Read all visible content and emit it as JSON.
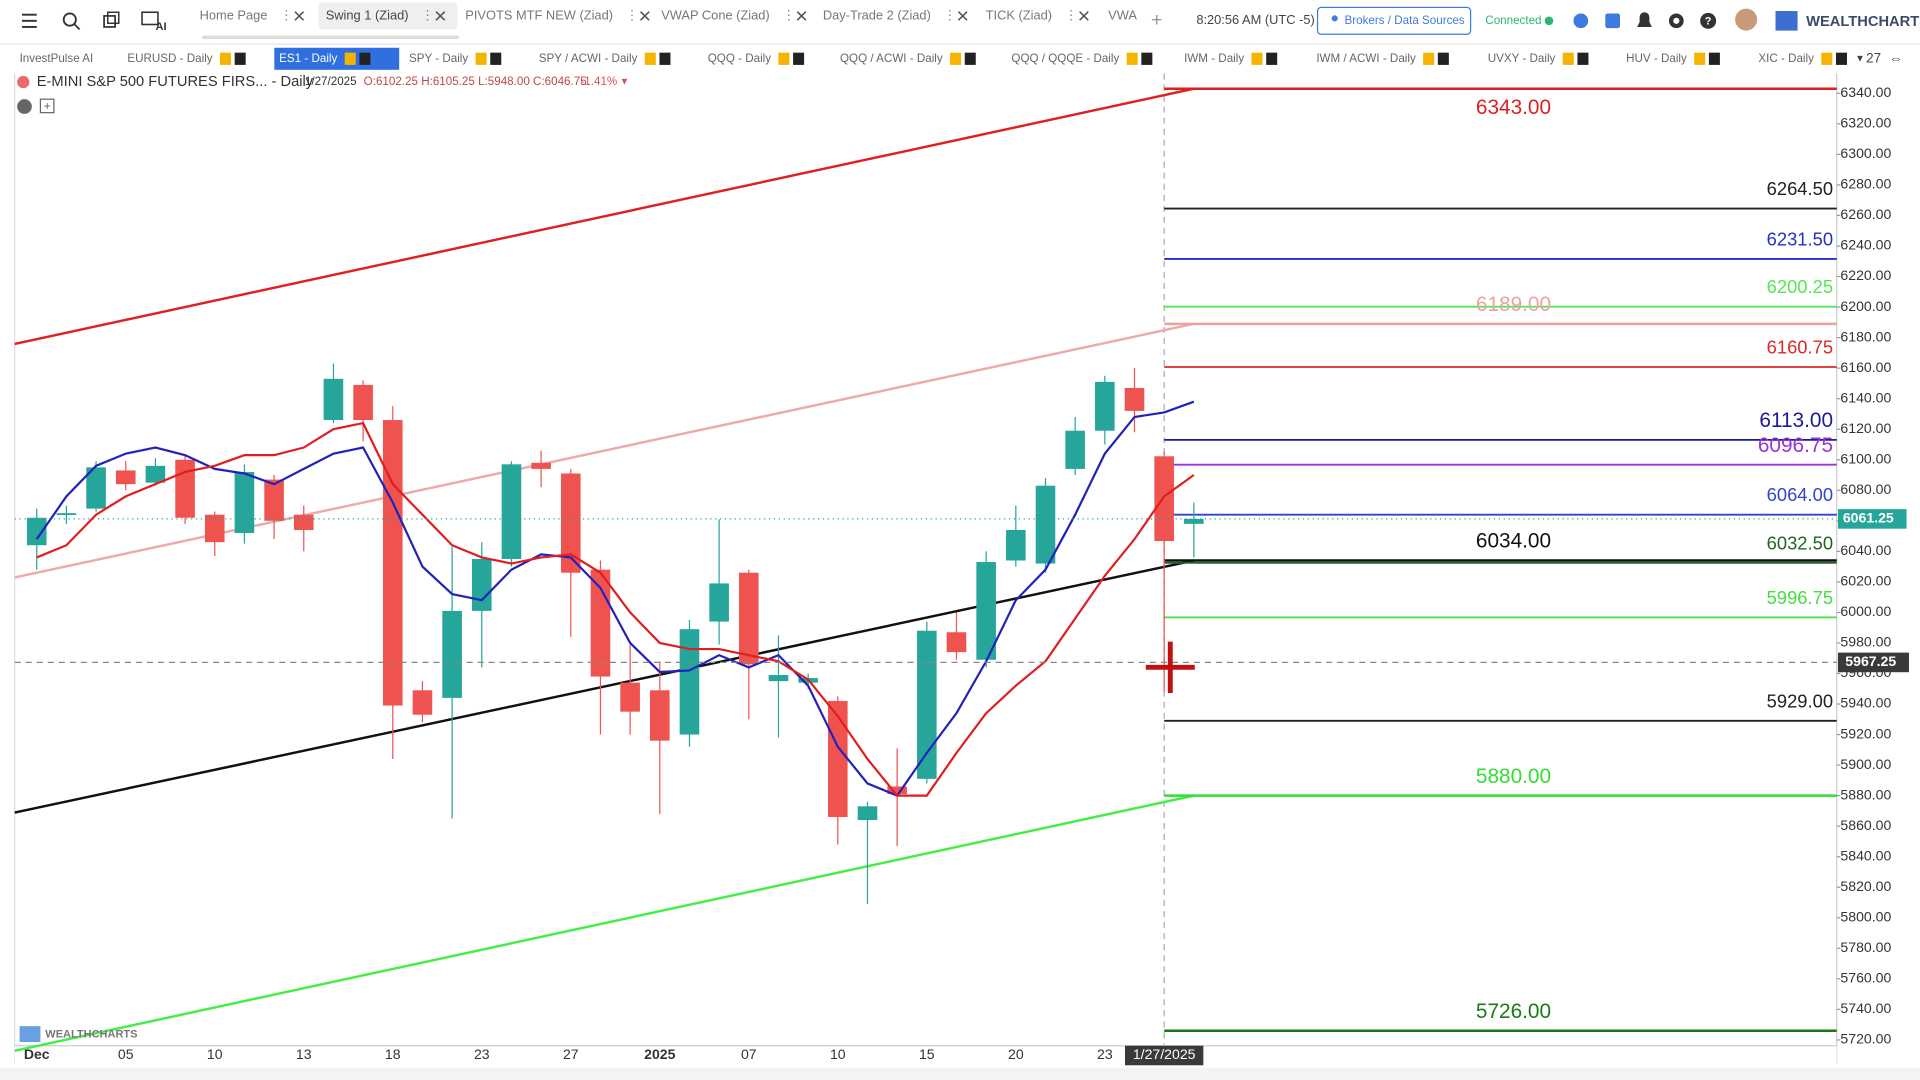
{
  "toolbar": {
    "tabs": [
      "Home Page",
      "Swing 1 (Ziad)",
      "PIVOTS MTF NEW (Ziad)",
      "VWAP Cone (Ziad)",
      "Day-Trade 2 (Ziad)",
      "TICK (Ziad)",
      "VWA"
    ],
    "active_tab": 1,
    "time": "8:20:56 AM (UTC -5)",
    "brokers_button": "Brokers / Data Sources",
    "status": "Connected",
    "brand": "WEALTHCHARTS"
  },
  "watchlist": {
    "tabs": [
      "InvestPulse AI",
      "EURUSD - Daily",
      "ES1 - Daily",
      "SPY - Daily",
      "SPY / ACWI - Daily",
      "QQQ - Daily",
      "QQQ / ACWI - Daily",
      "QQQ / QQQE - Daily",
      "IWM - Daily",
      "IWM / ACWI - Daily",
      "UVXY - Daily",
      "HUV - Daily",
      "XIC - Daily"
    ],
    "active_tab": 2,
    "count": "27"
  },
  "chart_header": {
    "symbol": "E-MINI S&P 500 FUTURES FIRS... - Daily",
    "date": "1/27/2025",
    "ohlc": "O:6102.25 H:6105.25 L:5948.00 C:6046.75",
    "change": "-1.41%"
  },
  "chart_data": {
    "type": "candlestick",
    "categories": [
      "Dec",
      null,
      null,
      "05",
      null,
      null,
      "10",
      null,
      null,
      "13",
      null,
      null,
      "18",
      null,
      null,
      "23",
      null,
      null,
      "27",
      null,
      null,
      "2025",
      null,
      null,
      "07",
      null,
      null,
      "10",
      null,
      null,
      "15",
      null,
      null,
      "20",
      null,
      null,
      "23",
      null,
      null,
      null
    ],
    "open": [
      6044,
      6064,
      6068,
      6093,
      6085,
      6100,
      6064,
      6052,
      6087,
      6064,
      6126,
      6149,
      6126,
      5949,
      5944,
      6001,
      6035,
      6098,
      6091,
      6028,
      5954,
      5949,
      5920,
      5994,
      6026,
      5955,
      5954,
      5942,
      5864,
      5886,
      5891,
      5987,
      5969,
      6034,
      6032,
      6094,
      6119,
      6147,
      6102.25,
      6058
    ],
    "high": [
      6068,
      6070,
      6099,
      6099,
      6101,
      6103,
      6066,
      6097,
      6090,
      6070,
      6163,
      6152,
      6135,
      5955,
      6043,
      6046,
      6099,
      6106,
      6094,
      6034,
      5979,
      5968,
      5995,
      6061,
      6028,
      5985,
      5960,
      5945,
      5876,
      5911,
      5994,
      6000,
      6040,
      6070,
      6088,
      6128,
      6155,
      6160,
      6105.25,
      6072
    ],
    "low": [
      6028,
      6058,
      6066,
      6080,
      6083,
      6058,
      6037,
      6045,
      6048,
      6040,
      6124,
      6112,
      5904,
      5928,
      5865,
      5964,
      6030,
      6082,
      5984,
      5920,
      5920,
      5868,
      5912,
      5979,
      5930,
      5918,
      5950,
      5848,
      5809,
      5847,
      5888,
      5969,
      5964,
      6030,
      6026,
      6090,
      6110,
      6118,
      5948,
      6036
    ],
    "close": [
      6062,
      6065,
      6095,
      6084,
      6096,
      6062,
      6046,
      6092,
      6060,
      6054,
      6153,
      6126,
      5939,
      5933,
      6001,
      6035,
      6097,
      6094,
      6026,
      5958,
      5935,
      5916,
      5989,
      6019,
      5966,
      5959,
      5957,
      5866,
      5873,
      5881,
      5988,
      5974,
      6033,
      6054,
      6083,
      6119,
      6151,
      6132,
      6046.75,
      6061.25
    ],
    "up_color": "#26a69a",
    "down_color": "#ef5350",
    "series": [
      {
        "color": "#2222bb",
        "values": [
          6048,
          6076,
          6096,
          6104,
          6108,
          6103,
          6094,
          6091,
          6084,
          6094,
          6104,
          6108,
          6072,
          6030,
          6012,
          6008,
          6028,
          6038,
          6036,
          6016,
          5980,
          5961,
          5962,
          5972,
          5964,
          5972,
          5952,
          5912,
          5888,
          5880,
          5908,
          5934,
          5968,
          6008,
          6028,
          6064,
          6104,
          6128,
          6131,
          6138
        ]
      },
      {
        "color": "#e01e1e",
        "values": [
          6036,
          6044,
          6064,
          6076,
          6084,
          6092,
          6096,
          6103,
          6103,
          6108,
          6120,
          6124,
          6084,
          6064,
          6044,
          6036,
          6032,
          6036,
          6038,
          6026,
          6000,
          5980,
          5976,
          5976,
          5972,
          5968,
          5956,
          5932,
          5904,
          5880,
          5880,
          5908,
          5934,
          5952,
          5968,
          5996,
          6024,
          6048,
          6076,
          6090
        ]
      }
    ],
    "trendlines": [
      {
        "color": "#e02020",
        "values": [
          6179,
          6343
        ]
      },
      {
        "color": "#eeaaaa",
        "values": [
          6026,
          6189
        ]
      },
      {
        "color": "#111111",
        "values": [
          5872,
          6034
        ]
      },
      {
        "color": "#44ee44",
        "values": [
          5716,
          5880
        ]
      }
    ],
    "levels": [
      {
        "value": 6343,
        "label": "6343.00",
        "color": "#dd1f1f",
        "align": "center"
      },
      {
        "value": 6264.5,
        "label": "6264.50",
        "color": "#222222",
        "align": "right"
      },
      {
        "value": 6231.5,
        "label": "6231.50",
        "color": "#2b2bd0",
        "align": "right"
      },
      {
        "value": 6200.25,
        "label": "6200.25",
        "color": "#55e855",
        "align": "right"
      },
      {
        "value": 6189,
        "label": "6189.00",
        "color": "#eea0a8",
        "align": "center"
      },
      {
        "value": 6160.75,
        "label": "6160.75",
        "color": "#dd2828",
        "align": "right"
      },
      {
        "value": 6113,
        "label": "6113.00",
        "color": "#1a1a9a",
        "align": "right"
      },
      {
        "value": 6096.75,
        "label": "6096.75",
        "color": "#9933dd",
        "align": "right"
      },
      {
        "value": 6064,
        "label": "6064.00",
        "color": "#3344cc",
        "align": "right"
      },
      {
        "value": 6034,
        "label": "6034.00",
        "color": "#111111",
        "align": "center"
      },
      {
        "value": 6032.5,
        "label": "6032.50",
        "color": "#226622",
        "align": "right"
      },
      {
        "value": 5996.75,
        "label": "5996.75",
        "color": "#44dd44",
        "align": "right"
      },
      {
        "value": 5929,
        "label": "5929.00",
        "color": "#222222",
        "align": "right"
      },
      {
        "value": 5880,
        "label": "5880.00",
        "color": "#33dd33",
        "align": "center"
      },
      {
        "value": 5726,
        "label": "5726.00",
        "color": "#1a7a1a",
        "align": "center"
      }
    ],
    "ylim": [
      5717,
      6353
    ],
    "yticks": [
      {
        "value": 5720,
        "label": "5720.00"
      },
      {
        "value": 5740,
        "label": "5740.00"
      },
      {
        "value": 5760,
        "label": "5760.00"
      },
      {
        "value": 5780,
        "label": "5780.00"
      },
      {
        "value": 5800,
        "label": "5800.00"
      },
      {
        "value": 5820,
        "label": "5820.00"
      },
      {
        "value": 5840,
        "label": "5840.00"
      },
      {
        "value": 5860,
        "label": "5860.00"
      },
      {
        "value": 5880,
        "label": "5880.00"
      },
      {
        "value": 5900,
        "label": "5900.00"
      },
      {
        "value": 5920,
        "label": "5920.00"
      },
      {
        "value": 5940,
        "label": "5940.00"
      },
      {
        "value": 5960,
        "label": "5960.00"
      },
      {
        "value": 5980,
        "label": "5980.00"
      },
      {
        "value": 6000,
        "label": "6000.00"
      },
      {
        "value": 6020,
        "label": "6020.00"
      },
      {
        "value": 6040,
        "label": "6040.00"
      },
      {
        "value": 6060,
        "label": "6060.00"
      },
      {
        "value": 6080,
        "label": "6080.00"
      },
      {
        "value": 6100,
        "label": "6100.00"
      },
      {
        "value": 6120,
        "label": "6120.00"
      },
      {
        "value": 6140,
        "label": "6140.00"
      },
      {
        "value": 6160,
        "label": "6160.00"
      },
      {
        "value": 6180,
        "label": "6180.00"
      },
      {
        "value": 6200,
        "label": "6200.00"
      },
      {
        "value": 6220,
        "label": "6220.00"
      },
      {
        "value": 6240,
        "label": "6240.00"
      },
      {
        "value": 6260,
        "label": "6260.00"
      },
      {
        "value": 6280,
        "label": "6280.00"
      },
      {
        "value": 6300,
        "label": "6300.00"
      },
      {
        "value": 6320,
        "label": "6320.00"
      },
      {
        "value": 6340,
        "label": "6340.00"
      }
    ],
    "last_price": {
      "value": 6061.25,
      "label": "6061.25",
      "color": "#26a69a"
    },
    "crosshair": {
      "value": 5967.25,
      "label": "5967.25",
      "date": "1/27/2025",
      "index": 38
    },
    "watermark": "WEALTHCHARTS"
  }
}
